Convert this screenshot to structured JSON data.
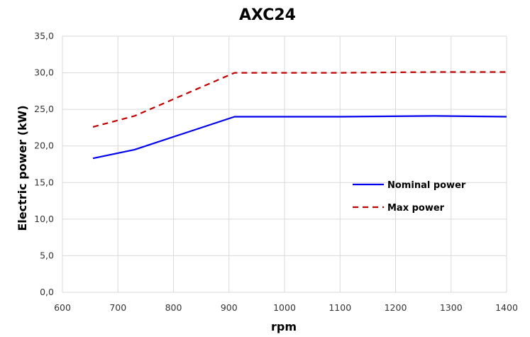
{
  "chart_data": {
    "type": "line",
    "title": "AXC24",
    "xlabel": "rpm",
    "ylabel": "Electric power (kW)",
    "xlim": [
      600,
      1400
    ],
    "ylim": [
      0,
      35
    ],
    "x_ticks": [
      "600",
      "700",
      "800",
      "900",
      "1000",
      "1100",
      "1200",
      "1300",
      "1400"
    ],
    "y_ticks": [
      "0,0",
      "5,0",
      "10,0",
      "15,0",
      "20,0",
      "25,0",
      "30,0",
      "35,0"
    ],
    "grid": "vertical and horizontal",
    "legend_position": "right-center",
    "series": [
      {
        "name": "Nominal power",
        "color": "#0000ee",
        "style": "solid",
        "x": [
          655,
          730,
          910,
          1100,
          1270,
          1400
        ],
        "values": [
          18.3,
          19.5,
          24.0,
          24.0,
          24.1,
          24.0
        ]
      },
      {
        "name": "Max power",
        "color": "#c00000",
        "style": "dashed",
        "x": [
          655,
          730,
          910,
          1100,
          1270,
          1400
        ],
        "values": [
          22.6,
          24.1,
          30.0,
          30.0,
          30.1,
          30.1
        ]
      }
    ]
  }
}
